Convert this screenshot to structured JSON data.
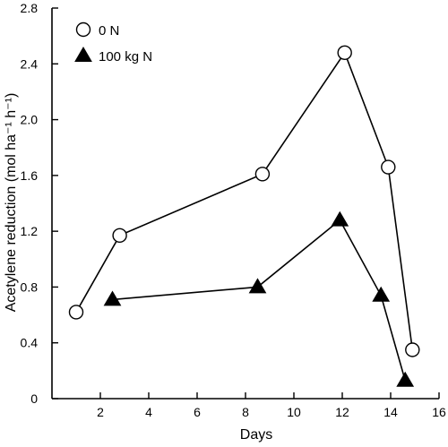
{
  "chart_data": {
    "type": "line",
    "title": "",
    "xlabel": "Days",
    "ylabel": "Acetylene reduction (mol ha⁻¹ h⁻¹)",
    "xlim": [
      0,
      16
    ],
    "ylim": [
      0,
      2.8
    ],
    "xticks": [
      2,
      4,
      6,
      8,
      10,
      12,
      14,
      16
    ],
    "xtick_labels": [
      "2",
      "4",
      "6",
      "8",
      "10",
      "12",
      "14",
      "16"
    ],
    "yticks": [
      0,
      0.4,
      0.8,
      1.2,
      1.6,
      2.0,
      2.4,
      2.8
    ],
    "ytick_labels": [
      "0",
      "0.4",
      "0.8",
      "1.2",
      "1.6",
      "2.0",
      "2.4",
      "2.8"
    ],
    "grid": false,
    "legend_position": "top-left",
    "series": [
      {
        "name": "0 N",
        "marker": "open-circle",
        "color": "#000000",
        "x": [
          1.0,
          2.8,
          8.7,
          12.1,
          13.9,
          14.9
        ],
        "y": [
          0.62,
          1.17,
          1.61,
          2.48,
          1.66,
          0.35
        ]
      },
      {
        "name": "100 kg N",
        "marker": "filled-triangle",
        "color": "#000000",
        "x": [
          2.5,
          8.5,
          11.9,
          13.6,
          14.6
        ],
        "y": [
          0.71,
          0.8,
          1.28,
          0.74,
          0.13
        ]
      }
    ]
  }
}
